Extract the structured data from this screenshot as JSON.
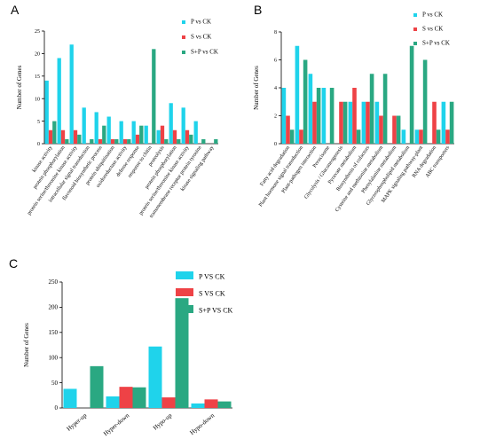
{
  "panels": {
    "a": "A",
    "b": "B",
    "c": "C"
  },
  "colors": {
    "p": "#1fd3eb",
    "s": "#ee4246",
    "sp": "#2aa882"
  },
  "chart_data": [
    {
      "type": "bar",
      "panel": "A",
      "ylabel": "Number of Genes",
      "ylim": [
        0,
        25
      ],
      "yticks": [
        0,
        5,
        10,
        15,
        20,
        25
      ],
      "categories": [
        "kinase activity",
        "protein phosphorylation",
        "protein serine/threonine kinase activity",
        "intracellular signal transduction",
        "flavonoid biosynthetic process",
        "protein ubiquitination",
        "oxidoreductase activity",
        "defense response",
        "response to chitin",
        "proteolysis",
        "protein phosphorylation",
        "protein serine/threonine kinase activity",
        "transmembrane receptor protein tyrosine",
        "kinase signaling pathway"
      ],
      "series": [
        {
          "name": "P vs CK",
          "values": [
            14,
            19,
            22,
            8,
            7,
            6,
            5,
            5,
            4,
            3,
            9,
            8,
            5,
            0
          ]
        },
        {
          "name": "S vs CK",
          "values": [
            3,
            3,
            3,
            0,
            1,
            1,
            1,
            2,
            0,
            4,
            3,
            3,
            0,
            0
          ]
        },
        {
          "name": "S+P vs CK",
          "values": [
            5,
            1,
            2,
            1,
            4,
            1,
            1,
            4,
            21,
            1,
            1,
            2,
            1,
            1
          ]
        }
      ]
    },
    {
      "type": "bar",
      "panel": "B",
      "ylabel": "Number of Genes",
      "ylim": [
        0,
        8
      ],
      "yticks": [
        0,
        2,
        4,
        6,
        8
      ],
      "categories": [
        "Fatty acid degradation",
        "Plant hormone signal transduction",
        "Plant-pathogen interaction",
        "Peroxisome",
        "Glycolysis / Gluconeogenesis",
        "Pyruvate metabolism",
        "Biosynthesis of cofactors",
        "Cysteine and methionine metabolism",
        "Phenylalanine metabolism",
        "Glycerophospholipid metabolism",
        "MAPK signaling pathway-plant",
        "RNA degradation",
        "ABC transporters"
      ],
      "series": [
        {
          "name": "P vs CK",
          "values": [
            4,
            7,
            5,
            4,
            0,
            3,
            3,
            3,
            0,
            1,
            1,
            0,
            3
          ]
        },
        {
          "name": "S vs CK",
          "values": [
            2,
            1,
            3,
            0,
            3,
            4,
            3,
            2,
            2,
            0,
            1,
            3,
            1
          ]
        },
        {
          "name": "S+P vs CK",
          "values": [
            1,
            6,
            4,
            4,
            3,
            1,
            5,
            5,
            2,
            7,
            6,
            1,
            3
          ]
        }
      ]
    },
    {
      "type": "bar",
      "panel": "C",
      "ylabel": "Number of Genes",
      "ylim": [
        0,
        250
      ],
      "yticks": [
        0,
        50,
        100,
        150,
        200,
        250
      ],
      "categories": [
        "Hyper-up",
        "Hyper-down",
        "Hypo-up",
        "Hypo-down"
      ],
      "series": [
        {
          "name": "P VS CK",
          "values": [
            38,
            23,
            122,
            9
          ]
        },
        {
          "name": "S VS CK",
          "values": [
            0,
            42,
            21,
            17
          ]
        },
        {
          "name": "S+P VS CK",
          "values": [
            83,
            41,
            218,
            13
          ]
        }
      ]
    }
  ]
}
